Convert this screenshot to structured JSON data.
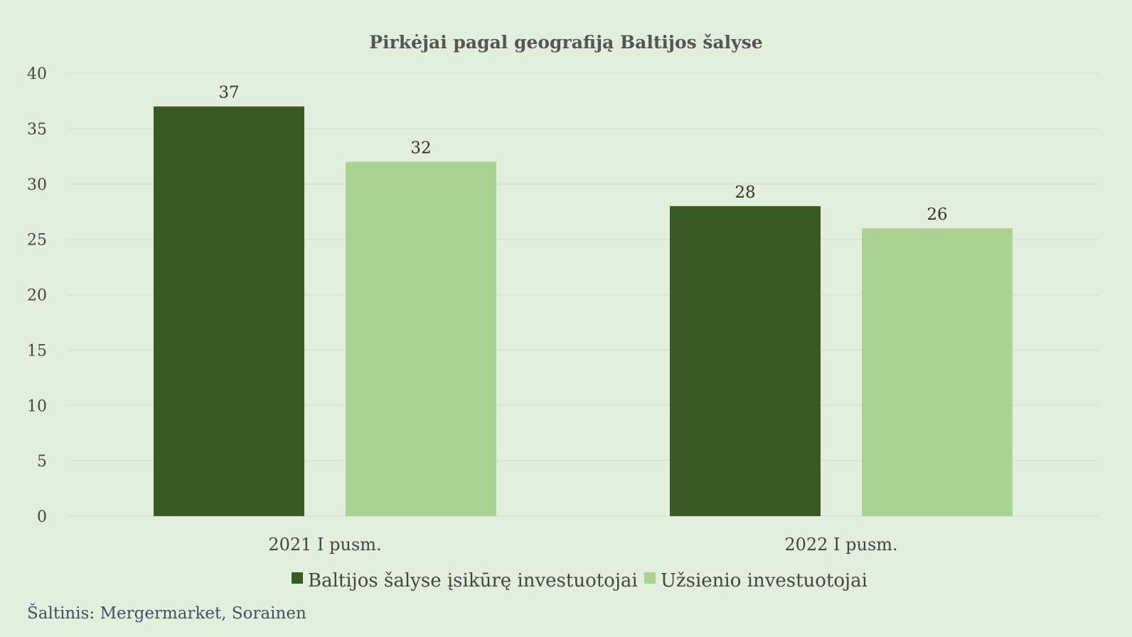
{
  "chart_data": {
    "type": "bar",
    "title": "Pirkėjai pagal geografiją Baltijos šalyse",
    "categories": [
      "2021 I pusm.",
      "2022 I pusm."
    ],
    "series": [
      {
        "name": "Baltijos šalyse įsikūrę investuotojai",
        "values": [
          37,
          28
        ],
        "color": "#3a5a23"
      },
      {
        "name": "Užsienio investuotojai",
        "values": [
          32,
          26
        ],
        "color": "#a9d38e"
      }
    ],
    "ylim": [
      0,
      40
    ],
    "yticks": [
      0,
      5,
      10,
      15,
      20,
      25,
      30,
      35,
      40
    ],
    "xlabel": "",
    "ylabel": "",
    "grid": true,
    "legend": "bottom"
  },
  "source": "Šaltinis: Mergermarket, Sorainen",
  "colors": {
    "background": "#e3efdd",
    "gridline": "#d6e3d0"
  }
}
